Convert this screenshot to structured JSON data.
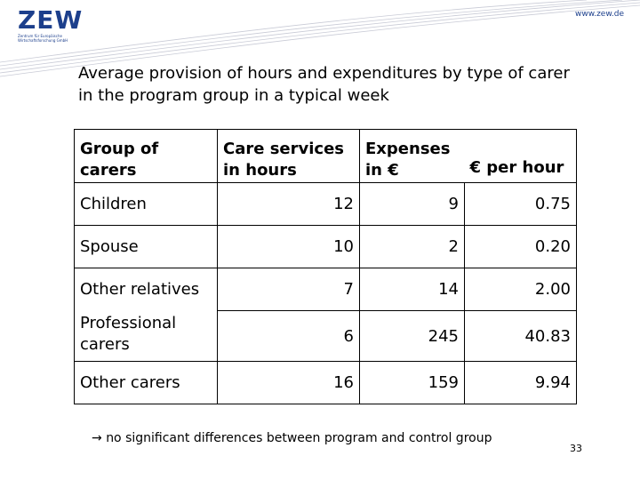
{
  "header": {
    "logo_text": "ZEW",
    "logo_subtitle": "Zentrum für Europäische Wirtschaftsforschung GmbH",
    "website": "www.zew.de"
  },
  "slide": {
    "title_line1": "Average provision of hours and expenditures by type of carer",
    "title_line2": "in the program group in a typical week"
  },
  "table": {
    "headers": {
      "group_line1": "Group of",
      "group_line2": "carers",
      "care_line1": "Care services",
      "care_line2": "in hours",
      "expenses_line1": "Expenses",
      "expenses_line2": "in €",
      "per_hour": "€ per hour"
    },
    "rows": [
      {
        "group": "Children",
        "hours": "12",
        "expenses": "9",
        "per_hour": "0.75"
      },
      {
        "group": "Spouse",
        "hours": "10",
        "expenses": "2",
        "per_hour": "0.20"
      },
      {
        "group": "Other relatives",
        "hours": "7",
        "expenses": "14",
        "per_hour": "2.00"
      },
      {
        "group_line1": "Professional",
        "group_line2": "carers",
        "hours": "6",
        "expenses": "245",
        "per_hour": "40.83"
      },
      {
        "group": "Other carers",
        "hours": "16",
        "expenses": "159",
        "per_hour": "9.94"
      }
    ]
  },
  "footer": {
    "arrow": "→",
    "note": "no significant differences between program and control group",
    "page_number": "33"
  }
}
